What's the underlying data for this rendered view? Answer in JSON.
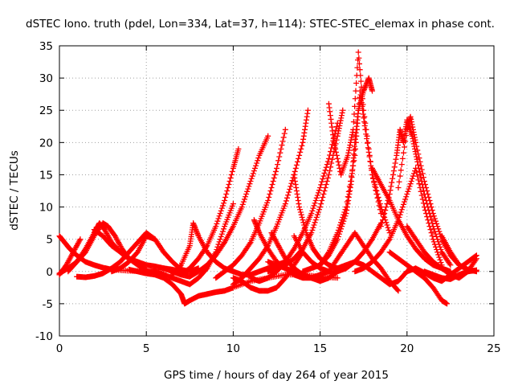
{
  "chart_data": {
    "type": "scatter",
    "title": "dSTEC Iono. truth (pdel, Lon=334, Lat=37, h=114): STEC-STEC_elemax in phase cont.",
    "xlabel": "GPS time / hours of day 264 of year 2015",
    "ylabel": "dSTEC  / TECUs",
    "xlim": [
      0,
      25
    ],
    "ylim": [
      -10,
      35
    ],
    "xticks": [
      0,
      5,
      10,
      15,
      20,
      25
    ],
    "yticks": [
      -10,
      -5,
      0,
      5,
      10,
      15,
      20,
      25,
      30,
      35
    ],
    "grid": true,
    "marker": "+",
    "marker_color": "#ff0000",
    "series": [
      {
        "x": [
          0.0,
          0.3,
          0.6,
          1.0,
          1.5,
          2.0,
          2.5,
          3.0,
          4.0,
          5.0,
          6.0
        ],
        "y": [
          5.5,
          4.5,
          3.5,
          2.5,
          1.5,
          1.0,
          0.6,
          0.3,
          0.1,
          0.0,
          -0.2
        ]
      },
      {
        "x": [
          0.0,
          0.4,
          0.8,
          1.2
        ],
        "y": [
          -0.5,
          1.0,
          3.0,
          5.0
        ]
      },
      {
        "x": [
          0.5,
          1.0,
          1.5,
          2.0,
          2.3,
          2.6,
          3.0,
          3.5,
          4.0,
          4.5,
          5.0
        ],
        "y": [
          0.0,
          1.5,
          3.5,
          6.0,
          7.5,
          6.5,
          4.5,
          3.0,
          2.0,
          1.0,
          0.3
        ]
      },
      {
        "x": [
          0.0,
          0.5,
          1.0,
          1.5,
          2.0,
          2.5,
          2.8,
          3.2,
          3.6,
          4.0
        ],
        "y": [
          -0.3,
          0.5,
          1.5,
          3.0,
          5.5,
          7.5,
          7.0,
          5.5,
          3.5,
          2.0
        ]
      },
      {
        "x": [
          1.0,
          1.5,
          2.0,
          2.5,
          3.0,
          3.5,
          4.0,
          4.5,
          5.0,
          5.5,
          6.0
        ],
        "y": [
          -0.8,
          -0.9,
          -0.7,
          -0.3,
          0.5,
          1.5,
          3.0,
          4.5,
          6.0,
          5.0,
          3.0
        ]
      },
      {
        "x": [
          2.0,
          2.5,
          3.0,
          3.5,
          4.0,
          4.5,
          5.0,
          5.5,
          6.0,
          6.5,
          7.0
        ],
        "y": [
          6.5,
          5.5,
          4.0,
          3.0,
          2.0,
          1.5,
          1.0,
          0.8,
          0.5,
          0.3,
          0.0
        ]
      },
      {
        "x": [
          3.0,
          3.5,
          4.0,
          4.5,
          5.0,
          5.5,
          6.0,
          6.5,
          7.0,
          7.5,
          8.0
        ],
        "y": [
          0.0,
          0.5,
          1.5,
          3.0,
          5.5,
          5.0,
          3.0,
          1.5,
          0.3,
          0.0,
          0.5
        ]
      },
      {
        "x": [
          4.0,
          4.5,
          5.0,
          5.5,
          6.0,
          6.5,
          7.0,
          7.2,
          7.5,
          8.0,
          8.5
        ],
        "y": [
          0.3,
          0.0,
          -0.3,
          -0.5,
          -1.0,
          -2.0,
          -3.5,
          -5.0,
          -4.5,
          -3.8,
          -3.5
        ]
      },
      {
        "x": [
          8.5,
          9.0,
          9.5,
          10.0,
          11.0,
          12.0,
          13.0,
          14.0,
          15.0,
          16.0
        ],
        "y": [
          -3.5,
          -3.2,
          -3.0,
          -2.5,
          -1.5,
          -1.0,
          -0.5,
          -0.5,
          -0.8,
          -1.0
        ]
      },
      {
        "x": [
          5.0,
          5.5,
          6.0,
          6.5,
          7.0,
          7.5,
          8.0,
          8.5,
          9.0,
          9.5,
          10.0
        ],
        "y": [
          0.0,
          0.0,
          -0.5,
          -1.0,
          -1.5,
          -2.0,
          -1.0,
          0.5,
          3.0,
          7.0,
          10.5
        ]
      },
      {
        "x": [
          6.0,
          6.5,
          7.0,
          7.5,
          8.0,
          8.5,
          9.0,
          9.5,
          10.0,
          10.3
        ],
        "y": [
          0.5,
          0.0,
          -0.5,
          0.5,
          2.0,
          4.0,
          7.0,
          11.0,
          16.0,
          19.0
        ]
      },
      {
        "x": [
          6.5,
          7.0,
          7.5,
          8.0,
          8.5,
          9.0,
          9.5,
          10.0,
          10.5,
          11.0,
          11.5,
          12.0
        ],
        "y": [
          0.0,
          -0.5,
          -0.8,
          0.0,
          1.0,
          2.5,
          4.5,
          7.0,
          10.0,
          14.0,
          18.0,
          21.0
        ]
      },
      {
        "x": [
          6.5,
          7.0,
          7.5,
          7.7,
          8.0,
          8.5,
          9.0,
          9.5,
          10.0,
          10.5,
          11.0,
          11.5,
          12.0,
          12.5,
          13.0
        ],
        "y": [
          -0.5,
          1.0,
          4.0,
          7.5,
          5.5,
          3.0,
          1.5,
          0.5,
          0.0,
          -0.5,
          -0.5,
          0.0,
          0.5,
          1.0,
          1.5
        ]
      },
      {
        "x": [
          9.0,
          9.5,
          10.0,
          10.5,
          11.0,
          11.5,
          12.0,
          12.5,
          13.0
        ],
        "y": [
          -1.0,
          0.0,
          1.0,
          2.5,
          4.5,
          7.5,
          11.0,
          16.0,
          22.0
        ]
      },
      {
        "x": [
          10.0,
          10.5,
          11.0,
          11.5,
          12.0,
          12.5,
          13.0,
          13.5,
          14.0,
          14.3
        ],
        "y": [
          -2.0,
          -1.0,
          0.5,
          2.0,
          4.0,
          7.0,
          10.5,
          15.0,
          20.0,
          25.0
        ]
      },
      {
        "x": [
          10.0,
          10.5,
          11.0,
          11.5,
          12.0,
          12.5,
          13.0,
          13.5,
          14.0
        ],
        "y": [
          -1.0,
          -1.5,
          -2.5,
          -3.0,
          -3.0,
          -2.5,
          -1.0,
          1.0,
          3.0
        ]
      },
      {
        "x": [
          11.2,
          11.5,
          12.0,
          12.5,
          13.0,
          13.5,
          14.0,
          14.5,
          15.0
        ],
        "y": [
          8.0,
          6.0,
          3.5,
          1.5,
          0.5,
          -0.5,
          -1.0,
          -1.0,
          -0.5
        ]
      },
      {
        "x": [
          11.0,
          11.5,
          12.0,
          12.5,
          13.0,
          13.5,
          14.0,
          14.5,
          15.0,
          15.5,
          16.0
        ],
        "y": [
          -1.0,
          -1.5,
          -1.0,
          0.0,
          1.5,
          3.5,
          6.0,
          9.0,
          13.0,
          17.5,
          23.0
        ]
      },
      {
        "x": [
          12.0,
          12.5,
          13.0,
          13.5,
          14.0,
          14.5,
          15.0,
          15.5,
          16.0,
          16.3
        ],
        "y": [
          0.0,
          0.5,
          1.0,
          2.0,
          3.5,
          6.0,
          10.0,
          15.0,
          21.0,
          25.0
        ]
      },
      {
        "x": [
          12.0,
          12.5,
          13.0,
          13.5,
          14.0,
          14.5,
          15.0,
          15.5,
          16.0
        ],
        "y": [
          1.5,
          1.0,
          0.5,
          0.0,
          -0.5,
          -1.0,
          -1.5,
          -1.0,
          0.0
        ]
      },
      {
        "x": [
          12.2,
          12.6,
          13.0,
          13.5,
          14.0,
          14.5,
          15.0
        ],
        "y": [
          6.0,
          4.0,
          2.0,
          0.5,
          -0.5,
          -1.0,
          -1.0
        ]
      },
      {
        "x": [
          13.5,
          14.0,
          14.5,
          15.0,
          15.5,
          16.0,
          16.5,
          17.0,
          17.5,
          18.0,
          18.5
        ],
        "y": [
          5.5,
          3.0,
          1.5,
          0.5,
          0.0,
          0.0,
          0.5,
          1.5,
          3.0,
          5.0,
          7.5
        ]
      },
      {
        "x": [
          13.5,
          13.8,
          14.2,
          14.6,
          15.0,
          15.5,
          16.0
        ],
        "y": [
          15.0,
          10.0,
          6.0,
          3.5,
          2.0,
          1.0,
          0.5
        ]
      },
      {
        "x": [
          14.0,
          14.5,
          15.0,
          15.5,
          16.0,
          16.5,
          17.0,
          17.3,
          17.6,
          18.0,
          18.5
        ],
        "y": [
          0.0,
          0.5,
          1.0,
          3.0,
          6.0,
          10.0,
          18.0,
          28.0,
          22.0,
          15.0,
          9.0
        ]
      },
      {
        "x": [
          15.0,
          15.5,
          16.0,
          16.5,
          16.8,
          17.0,
          17.2,
          17.5,
          17.8,
          18.0
        ],
        "y": [
          1.0,
          2.5,
          5.0,
          9.0,
          14.0,
          20.0,
          25.0,
          28.0,
          30.0,
          28.0
        ]
      },
      {
        "x": [
          15.5,
          15.8,
          16.2,
          16.6,
          16.9,
          17.2,
          17.5,
          18.0,
          18.5,
          19.0
        ],
        "y": [
          26.0,
          20.0,
          15.0,
          18.0,
          22.0,
          34.0,
          25.0,
          15.0,
          10.0,
          6.0
        ]
      },
      {
        "x": [
          16.0,
          16.5,
          17.0,
          17.5,
          18.0,
          18.5,
          19.0,
          19.5,
          20.0
        ],
        "y": [
          0.5,
          1.0,
          1.5,
          1.0,
          0.0,
          -1.0,
          -2.0,
          -1.5,
          0.0
        ]
      },
      {
        "x": [
          15.0,
          15.5,
          16.0,
          16.5,
          17.0,
          17.5,
          18.0,
          18.5,
          19.0,
          19.5
        ],
        "y": [
          -0.5,
          0.0,
          2.0,
          4.0,
          6.0,
          4.0,
          2.0,
          0.5,
          -1.5,
          -3.0
        ]
      },
      {
        "x": [
          17.0,
          17.5,
          18.0,
          18.5,
          19.0,
          19.5,
          20.0,
          20.5,
          21.0,
          21.5,
          22.0
        ],
        "y": [
          0.0,
          0.5,
          1.5,
          3.0,
          5.0,
          8.0,
          12.0,
          16.0,
          10.0,
          5.0,
          1.0
        ]
      },
      {
        "x": [
          18.5,
          19.0,
          19.4,
          19.6,
          19.8,
          20.0,
          20.3,
          20.6,
          21.0,
          21.5,
          22.0,
          22.5
        ],
        "y": [
          7.0,
          12.0,
          18.0,
          22.0,
          20.0,
          23.5,
          21.0,
          17.0,
          12.0,
          7.0,
          3.0,
          1.0
        ]
      },
      {
        "x": [
          18.0,
          18.5,
          19.0,
          19.5,
          20.0,
          20.5,
          21.0,
          21.5,
          22.0,
          22.5
        ],
        "y": [
          16.0,
          13.5,
          11.0,
          8.0,
          5.5,
          3.5,
          2.0,
          1.0,
          0.5,
          0.0
        ]
      },
      {
        "x": [
          19.5,
          20.0,
          20.2,
          20.5,
          21.0,
          21.5,
          22.0,
          22.5,
          23.0
        ],
        "y": [
          13.0,
          22.0,
          24.0,
          20.0,
          14.0,
          9.0,
          5.0,
          2.5,
          1.0
        ]
      },
      {
        "x": [
          19.0,
          19.5,
          20.0,
          20.5,
          21.0,
          21.5,
          22.0,
          22.3
        ],
        "y": [
          3.0,
          2.0,
          1.0,
          0.0,
          -1.0,
          -2.5,
          -4.5,
          -5.0
        ]
      },
      {
        "x": [
          20.0,
          20.5,
          21.0,
          21.5,
          22.0,
          22.5,
          23.0,
          23.5,
          24.0
        ],
        "y": [
          7.0,
          5.0,
          3.0,
          1.5,
          0.5,
          -0.5,
          -1.0,
          0.0,
          2.0
        ]
      },
      {
        "x": [
          21.0,
          21.5,
          22.0,
          22.5,
          23.0,
          23.5,
          24.0
        ],
        "y": [
          0.0,
          -0.5,
          -1.0,
          -1.2,
          -0.5,
          0.0,
          0.2
        ]
      },
      {
        "x": [
          20.0,
          20.5,
          21.0,
          21.5,
          22.0,
          22.5,
          23.0,
          23.5,
          24.0
        ],
        "y": [
          0.0,
          0.5,
          -0.2,
          -1.0,
          -1.5,
          -0.5,
          0.5,
          1.5,
          2.5
        ]
      },
      {
        "x": [
          22.0,
          22.5,
          23.0,
          23.5,
          24.0
        ],
        "y": [
          5.5,
          3.0,
          1.0,
          0.3,
          0.0
        ]
      }
    ]
  }
}
